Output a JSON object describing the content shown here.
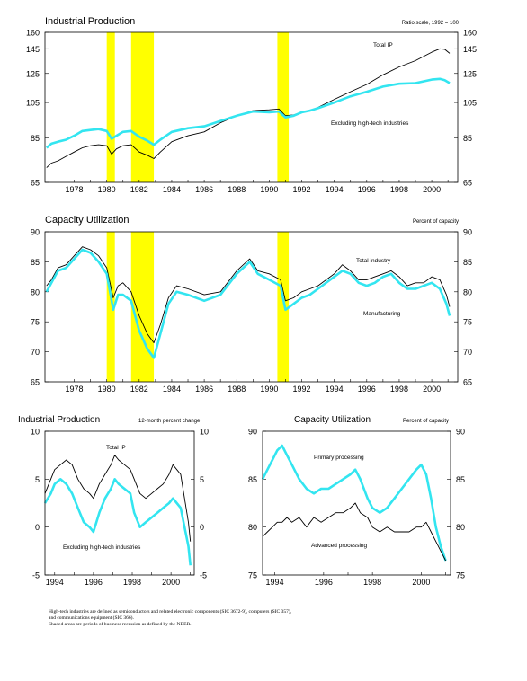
{
  "chart_data": [
    {
      "id": "ip_top",
      "type": "line",
      "title": "Industrial Production",
      "scale_note": "Ratio scale, 1992 = 100",
      "log_scale": true,
      "ylim": [
        65,
        160
      ],
      "xlim": [
        1976.2,
        2001.6
      ],
      "y_ticks": [
        65,
        85,
        105,
        125,
        145,
        160
      ],
      "x_ticks": [
        1978,
        1980,
        1982,
        1984,
        1986,
        1988,
        1990,
        1992,
        1994,
        1996,
        1998,
        2000
      ],
      "shaded": [
        [
          1980.0,
          1980.5
        ],
        [
          1981.5,
          1982.9
        ],
        [
          1990.5,
          1991.2
        ]
      ],
      "series": [
        {
          "name": "Total IP",
          "color": "#000000",
          "x": [
            1976.3,
            1976.6,
            1977.0,
            1977.5,
            1978.0,
            1978.5,
            1979.0,
            1979.5,
            1980.0,
            1980.3,
            1980.6,
            1981.0,
            1981.5,
            1982.0,
            1982.5,
            1982.9,
            1983.3,
            1984.0,
            1985.0,
            1986.0,
            1987.0,
            1988.0,
            1989.0,
            1990.0,
            1990.6,
            1991.0,
            1991.5,
            1992.0,
            1992.5,
            1993.0,
            1994.0,
            1995.0,
            1996.0,
            1997.0,
            1998.0,
            1999.0,
            2000.0,
            2000.5,
            2000.8,
            2001.1
          ],
          "y": [
            71,
            73,
            74,
            76,
            78,
            80,
            81,
            81.5,
            81,
            77,
            79.5,
            81,
            81.5,
            78,
            76.5,
            75,
            78,
            83,
            86,
            88,
            93,
            97,
            100,
            100.5,
            101,
            97,
            97.5,
            99,
            100,
            102,
            107,
            112,
            117,
            124,
            130,
            135,
            142,
            145,
            144.5,
            141
          ]
        },
        {
          "name": "Excluding high-tech industries",
          "color": "#33e5f0",
          "x": [
            1976.3,
            1976.6,
            1977.0,
            1977.5,
            1978.0,
            1978.5,
            1979.0,
            1979.5,
            1980.0,
            1980.3,
            1980.6,
            1981.0,
            1981.5,
            1982.0,
            1982.5,
            1982.9,
            1983.3,
            1984.0,
            1985.0,
            1986.0,
            1987.0,
            1988.0,
            1989.0,
            1990.0,
            1990.6,
            1991.0,
            1991.5,
            1992.0,
            1992.5,
            1993.0,
            1994.0,
            1995.0,
            1996.0,
            1997.0,
            1998.0,
            1999.0,
            2000.0,
            2000.5,
            2000.8,
            2001.1
          ],
          "y": [
            80,
            82,
            83,
            84,
            86,
            88.5,
            89,
            89.5,
            88.5,
            84.5,
            86,
            88,
            88.5,
            85.5,
            83.5,
            81.5,
            84,
            88,
            90,
            91,
            94,
            97,
            99.5,
            99,
            99.5,
            96,
            97,
            99,
            100,
            101.5,
            105,
            109,
            112,
            115.5,
            117.5,
            118,
            120.5,
            121,
            120,
            118
          ]
        }
      ]
    },
    {
      "id": "cu_top",
      "type": "line",
      "title": "Capacity Utilization",
      "scale_note": "Percent of capacity",
      "ylim": [
        65,
        90
      ],
      "xlim": [
        1976.2,
        2001.6
      ],
      "y_ticks": [
        65,
        70,
        75,
        80,
        85,
        90
      ],
      "x_ticks": [
        1978,
        1980,
        1982,
        1984,
        1986,
        1988,
        1990,
        1992,
        1994,
        1996,
        1998,
        2000
      ],
      "shaded": [
        [
          1980.0,
          1980.5
        ],
        [
          1981.5,
          1982.9
        ],
        [
          1990.5,
          1991.2
        ]
      ],
      "series": [
        {
          "name": "Total industry",
          "color": "#000000",
          "x": [
            1976.3,
            1976.6,
            1977.0,
            1977.5,
            1978.0,
            1978.5,
            1979.0,
            1979.5,
            1980.0,
            1980.4,
            1980.7,
            1981.0,
            1981.5,
            1982.0,
            1982.5,
            1982.9,
            1983.3,
            1983.8,
            1984.3,
            1985.0,
            1986.0,
            1987.0,
            1988.0,
            1988.8,
            1989.3,
            1990.0,
            1990.7,
            1991.0,
            1991.5,
            1992.0,
            1992.5,
            1993.0,
            1994.0,
            1994.5,
            1995.0,
            1995.5,
            1996.0,
            1996.5,
            1997.0,
            1997.5,
            1998.0,
            1998.5,
            1999.0,
            1999.5,
            2000.0,
            2000.5,
            2000.9,
            2001.1
          ],
          "y": [
            81,
            82,
            84,
            84.5,
            86,
            87.5,
            87,
            86,
            84,
            79,
            81,
            81.5,
            80,
            76,
            73,
            71.5,
            74.5,
            79,
            81,
            80.5,
            79.5,
            80,
            83.5,
            85.5,
            83.5,
            83,
            82,
            78.5,
            79,
            80,
            80.5,
            81,
            83,
            84.5,
            83.5,
            82,
            82,
            82.5,
            83,
            83.5,
            82.5,
            81,
            81.5,
            81.5,
            82.5,
            82,
            79.5,
            77.5
          ]
        },
        {
          "name": "Manufacturing",
          "color": "#33e5f0",
          "x": [
            1976.3,
            1976.6,
            1977.0,
            1977.5,
            1978.0,
            1978.5,
            1979.0,
            1979.5,
            1980.0,
            1980.4,
            1980.7,
            1981.0,
            1981.5,
            1982.0,
            1982.5,
            1982.9,
            1983.3,
            1983.8,
            1984.3,
            1985.0,
            1986.0,
            1987.0,
            1988.0,
            1988.8,
            1989.3,
            1990.0,
            1990.7,
            1991.0,
            1991.5,
            1992.0,
            1992.5,
            1993.0,
            1994.0,
            1994.5,
            1995.0,
            1995.5,
            1996.0,
            1996.5,
            1997.0,
            1997.5,
            1998.0,
            1998.5,
            1999.0,
            1999.5,
            2000.0,
            2000.5,
            2000.9,
            2001.1
          ],
          "y": [
            80,
            81.5,
            83.5,
            84,
            85.5,
            87,
            86.5,
            85,
            83,
            77,
            79.5,
            79.5,
            78.5,
            73.5,
            70.5,
            69,
            73,
            78,
            80,
            79.5,
            78.5,
            79.5,
            83,
            85,
            83,
            82,
            81,
            77,
            78,
            79,
            79.5,
            80.5,
            82.5,
            83.5,
            83,
            81.5,
            81,
            81.5,
            82.5,
            83,
            81.5,
            80.5,
            80.5,
            81,
            81.5,
            80.5,
            78,
            76
          ]
        }
      ]
    },
    {
      "id": "ip_bottom",
      "type": "line",
      "title": "Industrial Production",
      "scale_note": "12-month percent change",
      "ylim": [
        -5,
        10
      ],
      "xlim": [
        1993.5,
        2001.2
      ],
      "y_ticks": [
        -5,
        0,
        5,
        10
      ],
      "x_ticks": [
        1994,
        1996,
        1998,
        2000
      ],
      "series": [
        {
          "name": "Total IP",
          "color": "#000000",
          "x": [
            1993.5,
            1993.8,
            1994.0,
            1994.3,
            1994.6,
            1994.9,
            1995.2,
            1995.5,
            1995.8,
            1996.0,
            1996.3,
            1996.6,
            1996.9,
            1997.1,
            1997.3,
            1997.6,
            1997.9,
            1998.1,
            1998.4,
            1998.7,
            1999.0,
            1999.3,
            1999.6,
            1999.9,
            2000.1,
            2000.3,
            2000.5,
            2000.7,
            2000.9,
            2001.0
          ],
          "y": [
            3.5,
            5,
            6,
            6.5,
            7,
            6.5,
            5,
            4,
            3.5,
            3,
            4.5,
            5.5,
            6.5,
            7.5,
            7,
            6.5,
            6,
            5,
            3.5,
            3,
            3.5,
            4,
            4.5,
            5.5,
            6.5,
            6,
            5.5,
            3,
            0.5,
            -1.5
          ]
        },
        {
          "name": "Excluding high-tech industries",
          "color": "#33e5f0",
          "x": [
            1993.5,
            1993.8,
            1994.0,
            1994.3,
            1994.6,
            1994.9,
            1995.2,
            1995.5,
            1995.8,
            1996.0,
            1996.3,
            1996.6,
            1996.9,
            1997.1,
            1997.3,
            1997.6,
            1997.9,
            1998.1,
            1998.4,
            1998.7,
            1999.0,
            1999.3,
            1999.6,
            1999.9,
            2000.1,
            2000.3,
            2000.5,
            2000.7,
            2000.9,
            2001.0
          ],
          "y": [
            2.5,
            3.5,
            4.5,
            5,
            4.5,
            3.5,
            2,
            0.5,
            0,
            -0.5,
            1.5,
            3,
            4,
            5,
            4.5,
            4,
            3.5,
            1.5,
            0,
            0.5,
            1,
            1.5,
            2,
            2.5,
            3,
            2.5,
            2,
            0,
            -2,
            -4
          ]
        }
      ]
    },
    {
      "id": "cu_bottom",
      "type": "line",
      "title": "Capacity Utilization",
      "scale_note": "Percent of capacity",
      "ylim": [
        75,
        90
      ],
      "xlim": [
        1993.5,
        2001.2
      ],
      "y_ticks": [
        75,
        80,
        85,
        90
      ],
      "x_ticks": [
        1994,
        1996,
        1998,
        2000
      ],
      "series": [
        {
          "name": "Primary processing",
          "color": "#33e5f0",
          "x": [
            1993.5,
            1993.7,
            1993.9,
            1994.1,
            1994.3,
            1994.5,
            1994.7,
            1995.0,
            1995.3,
            1995.6,
            1995.9,
            1996.2,
            1996.5,
            1996.8,
            1997.1,
            1997.3,
            1997.5,
            1997.8,
            1998.0,
            1998.3,
            1998.6,
            1998.9,
            1999.2,
            1999.5,
            1999.8,
            2000.0,
            2000.2,
            2000.4,
            2000.6,
            2000.8,
            2001.0
          ],
          "y": [
            85,
            86,
            87,
            88,
            88.5,
            87.5,
            86.5,
            85,
            84,
            83.5,
            84,
            84,
            84.5,
            85,
            85.5,
            86,
            85,
            83,
            82,
            81.5,
            82,
            83,
            84,
            85,
            86,
            86.5,
            85.5,
            83,
            80,
            78,
            76.5
          ]
        },
        {
          "name": "Advanced processing",
          "color": "#000000",
          "x": [
            1993.5,
            1993.7,
            1993.9,
            1994.1,
            1994.3,
            1994.5,
            1994.7,
            1995.0,
            1995.3,
            1995.6,
            1995.9,
            1996.2,
            1996.5,
            1996.8,
            1997.1,
            1997.3,
            1997.5,
            1997.8,
            1998.0,
            1998.3,
            1998.6,
            1998.9,
            1999.2,
            1999.5,
            1999.8,
            2000.0,
            2000.2,
            2000.4,
            2000.6,
            2000.8,
            2001.0
          ],
          "y": [
            79,
            79.5,
            80,
            80.5,
            80.5,
            81,
            80.5,
            81,
            80,
            81,
            80.5,
            81,
            81.5,
            81.5,
            82,
            82.5,
            81.5,
            81,
            80,
            79.5,
            80,
            79.5,
            79.5,
            79.5,
            80,
            80,
            80.5,
            79.5,
            78.5,
            77.5,
            76.5
          ]
        }
      ]
    }
  ],
  "footnote": [
    "High-tech industries are defined as semiconductors and related electronic components (SIC 3672-9), computers (SIC 357), ",
    "and communications equipment (SIC 366).",
    "Shaded areas are periods of business recession as defined by the NBER."
  ]
}
